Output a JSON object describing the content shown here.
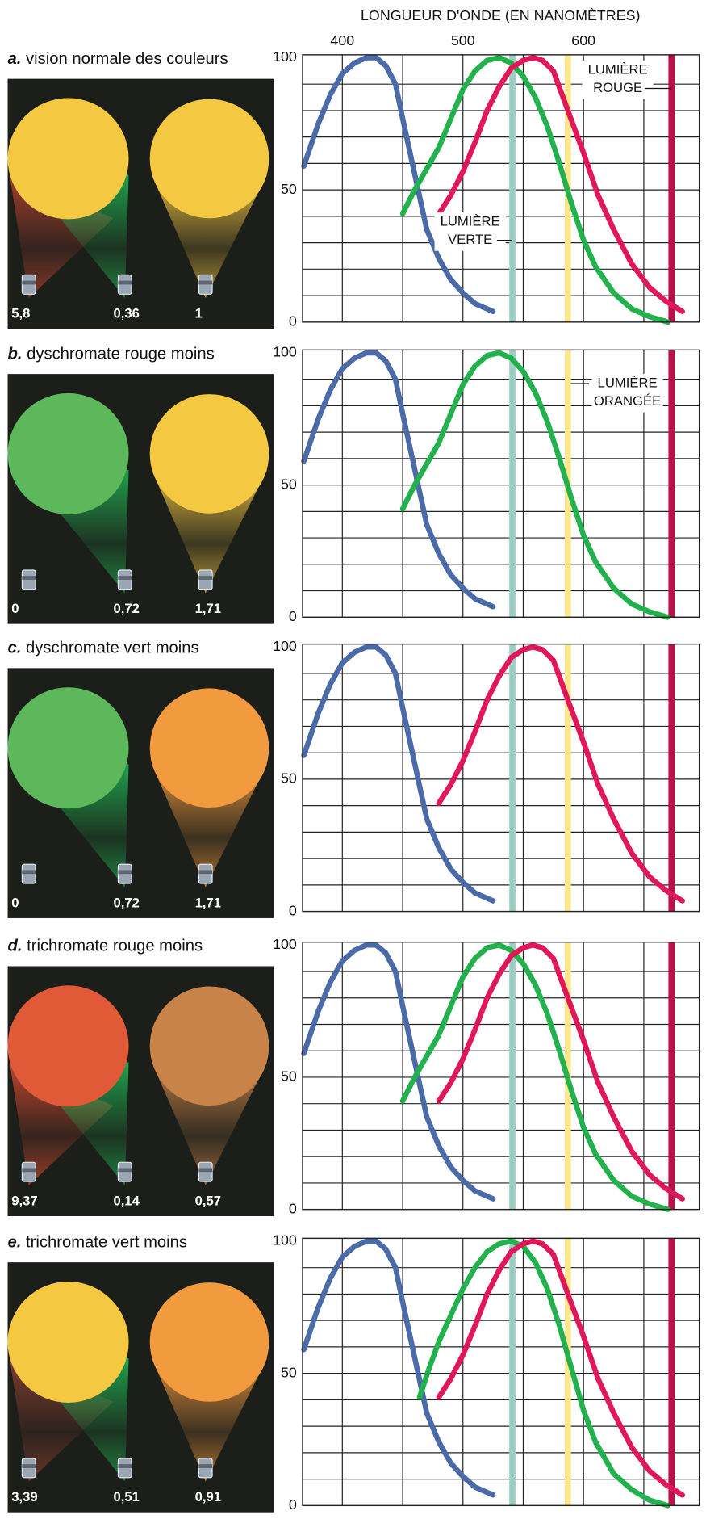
{
  "chart_data": [
    {
      "type": "line",
      "panel": "a.",
      "title": "vision normale des couleurs",
      "xlabel": "LONGUEUR D'ONDE (EN NANOMÈTRES)",
      "xticks": [
        400,
        500,
        600
      ],
      "xlim": [
        367,
        696
      ],
      "ylim": [
        0,
        100
      ],
      "yticks": [
        0,
        50,
        100
      ],
      "xgrid": [
        400,
        450,
        500,
        550,
        600,
        650
      ],
      "ygrid": [
        10,
        20,
        30,
        40,
        50,
        60,
        70,
        80,
        90
      ],
      "series": [
        {
          "color": "#4a6aa8",
          "x": [
            368,
            380,
            390,
            400,
            410,
            420,
            428,
            436,
            444,
            450,
            460,
            470,
            480,
            490,
            500,
            510,
            525
          ],
          "values": [
            59,
            75,
            86,
            94,
            98,
            100,
            100,
            97,
            90,
            77,
            56,
            35,
            24,
            16,
            11,
            7,
            4
          ]
        },
        {
          "color": "#22b14c",
          "x": [
            450,
            460,
            470,
            480,
            490,
            500,
            510,
            520,
            530,
            540,
            550,
            560,
            570,
            580,
            590,
            600,
            610,
            625,
            640,
            655,
            670
          ],
          "values": [
            41,
            50,
            58,
            66,
            77,
            88,
            95,
            99,
            100,
            98,
            93,
            85,
            74,
            60,
            45,
            31,
            21,
            11,
            5,
            2,
            0
          ]
        },
        {
          "color": "#e0185a",
          "x": [
            480,
            490,
            500,
            510,
            520,
            530,
            540,
            550,
            558,
            566,
            575,
            587,
            600,
            612,
            625,
            640,
            655,
            668,
            682
          ],
          "values": [
            41,
            48,
            57,
            68,
            80,
            89,
            96,
            99,
            100,
            99,
            95,
            80,
            64,
            48,
            35,
            22,
            13,
            8,
            4
          ]
        }
      ],
      "lights": [
        {
          "wavelength": 541,
          "color": "#9ccfc4",
          "label": [
            "LUMIÈRE",
            "VERTE"
          ]
        },
        {
          "wavelength": 587,
          "color": "#fce68e"
        },
        {
          "wavelength": 673,
          "color": "#b8124a",
          "label": [
            "LUMIÈRE",
            "ROUGE"
          ]
        }
      ],
      "mix_color": "#f5c842",
      "target_color": "#f5c842",
      "lamps": {
        "values": [
          5.8,
          0.36,
          1
        ],
        "value_labels": [
          "5,8",
          "0,36",
          "1"
        ],
        "colors": [
          "#b5432f",
          "#1fae50",
          "#f5c842"
        ]
      }
    },
    {
      "type": "line",
      "panel": "b.",
      "title": "dyschromate rouge moins",
      "xlim": [
        367,
        696
      ],
      "ylim": [
        0,
        100
      ],
      "yticks": [
        0,
        50,
        100
      ],
      "xgrid": [
        400,
        450,
        500,
        550,
        600,
        650
      ],
      "ygrid": [
        10,
        20,
        30,
        40,
        50,
        60,
        70,
        80,
        90
      ],
      "series": [
        {
          "color": "#4a6aa8",
          "x": [
            368,
            380,
            390,
            400,
            410,
            420,
            428,
            436,
            444,
            450,
            460,
            470,
            480,
            490,
            500,
            510,
            525
          ],
          "values": [
            59,
            75,
            86,
            94,
            98,
            100,
            100,
            97,
            90,
            77,
            56,
            35,
            24,
            16,
            11,
            7,
            4
          ]
        },
        {
          "color": "#22b14c",
          "x": [
            450,
            460,
            470,
            480,
            490,
            500,
            510,
            520,
            530,
            540,
            550,
            560,
            570,
            580,
            590,
            600,
            610,
            625,
            640,
            655,
            670
          ],
          "values": [
            41,
            50,
            58,
            66,
            77,
            88,
            95,
            99,
            100,
            98,
            93,
            85,
            74,
            60,
            45,
            31,
            21,
            11,
            5,
            2,
            0
          ]
        }
      ],
      "lights": [
        {
          "wavelength": 541,
          "color": "#9ccfc4"
        },
        {
          "wavelength": 587,
          "color": "#fce68e",
          "label": [
            "LUMIÈRE",
            "ORANGÉE"
          ]
        },
        {
          "wavelength": 673,
          "color": "#b8124a"
        }
      ],
      "mix_color": "#5cb85a",
      "target_color": "#f5c842",
      "lamps": {
        "values": [
          0,
          0.72,
          1.71
        ],
        "value_labels": [
          "0",
          "0,72",
          "1,71"
        ],
        "colors": [
          "#b5432f",
          "#1fae50",
          "#f5c842"
        ]
      }
    },
    {
      "type": "line",
      "panel": "c.",
      "title": "dyschromate vert moins",
      "xlim": [
        367,
        696
      ],
      "ylim": [
        0,
        100
      ],
      "yticks": [
        0,
        50,
        100
      ],
      "xgrid": [
        400,
        450,
        500,
        550,
        600,
        650
      ],
      "ygrid": [
        10,
        20,
        30,
        40,
        50,
        60,
        70,
        80,
        90
      ],
      "series": [
        {
          "color": "#4a6aa8",
          "x": [
            368,
            380,
            390,
            400,
            410,
            420,
            428,
            436,
            444,
            450,
            460,
            470,
            480,
            490,
            500,
            510,
            525
          ],
          "values": [
            59,
            75,
            86,
            94,
            98,
            100,
            100,
            97,
            90,
            77,
            56,
            35,
            24,
            16,
            11,
            7,
            4
          ]
        },
        {
          "color": "#e0185a",
          "x": [
            480,
            490,
            500,
            510,
            520,
            530,
            540,
            550,
            558,
            566,
            575,
            587,
            600,
            612,
            625,
            640,
            655,
            668,
            682
          ],
          "values": [
            41,
            48,
            57,
            68,
            80,
            89,
            96,
            99,
            100,
            99,
            95,
            80,
            64,
            48,
            35,
            22,
            13,
            8,
            4
          ]
        }
      ],
      "lights": [
        {
          "wavelength": 541,
          "color": "#9ccfc4"
        },
        {
          "wavelength": 587,
          "color": "#fce68e"
        },
        {
          "wavelength": 673,
          "color": "#b8124a"
        }
      ],
      "mix_color": "#5cb85a",
      "target_color": "#f29a3e",
      "lamps": {
        "values": [
          0,
          0.72,
          1.71
        ],
        "value_labels": [
          "0",
          "0,72",
          "1,71"
        ],
        "colors": [
          "#b5432f",
          "#1fae50",
          "#f29a3e"
        ]
      }
    },
    {
      "type": "line",
      "panel": "d.",
      "title": "trichromate rouge moins",
      "xlim": [
        367,
        696
      ],
      "ylim": [
        0,
        100
      ],
      "yticks": [
        0,
        50,
        100
      ],
      "xgrid": [
        400,
        450,
        500,
        550,
        600,
        650
      ],
      "ygrid": [
        10,
        20,
        30,
        40,
        50,
        60,
        70,
        80,
        90
      ],
      "series": [
        {
          "color": "#4a6aa8",
          "x": [
            368,
            380,
            390,
            400,
            410,
            420,
            428,
            436,
            444,
            450,
            460,
            470,
            480,
            490,
            500,
            510,
            525
          ],
          "values": [
            59,
            75,
            86,
            94,
            98,
            100,
            100,
            97,
            90,
            77,
            56,
            35,
            24,
            16,
            11,
            7,
            4
          ]
        },
        {
          "color": "#22b14c",
          "x": [
            450,
            460,
            470,
            480,
            490,
            500,
            510,
            520,
            530,
            540,
            550,
            560,
            570,
            580,
            590,
            600,
            610,
            625,
            640,
            655,
            670
          ],
          "values": [
            41,
            50,
            58,
            66,
            77,
            88,
            95,
            99,
            100,
            98,
            93,
            85,
            74,
            60,
            45,
            31,
            21,
            11,
            5,
            2,
            0
          ]
        },
        {
          "color": "#e0185a",
          "x": [
            480,
            490,
            500,
            510,
            520,
            530,
            540,
            550,
            558,
            566,
            575,
            587,
            600,
            612,
            625,
            640,
            655,
            668,
            682
          ],
          "values": [
            41,
            48,
            57,
            68,
            80,
            89,
            96,
            99,
            100,
            99,
            95,
            80,
            64,
            48,
            35,
            22,
            13,
            8,
            4
          ]
        }
      ],
      "lights": [
        {
          "wavelength": 541,
          "color": "#9ccfc4"
        },
        {
          "wavelength": 587,
          "color": "#fce68e"
        },
        {
          "wavelength": 673,
          "color": "#b8124a"
        }
      ],
      "mix_color": "#e05a38",
      "target_color": "#c88448",
      "lamps": {
        "values": [
          9.37,
          0.14,
          0.57
        ],
        "value_labels": [
          "9,37",
          "0,14",
          "0,57"
        ],
        "colors": [
          "#d04a30",
          "#1fae50",
          "#c88448"
        ]
      }
    },
    {
      "type": "line",
      "panel": "e.",
      "title": "trichromate vert moins",
      "xlim": [
        367,
        696
      ],
      "ylim": [
        0,
        100
      ],
      "yticks": [
        0,
        50,
        100
      ],
      "xgrid": [
        400,
        450,
        500,
        550,
        600,
        650
      ],
      "ygrid": [
        10,
        20,
        30,
        40,
        50,
        60,
        70,
        80,
        90
      ],
      "series": [
        {
          "color": "#4a6aa8",
          "x": [
            368,
            380,
            390,
            400,
            410,
            420,
            428,
            436,
            444,
            450,
            460,
            470,
            480,
            490,
            500,
            510,
            525
          ],
          "values": [
            59,
            75,
            86,
            94,
            98,
            100,
            100,
            97,
            90,
            77,
            56,
            35,
            24,
            16,
            11,
            7,
            4
          ]
        },
        {
          "color": "#22b14c",
          "x": [
            464,
            472,
            480,
            490,
            500,
            510,
            520,
            530,
            540,
            550,
            560,
            570,
            580,
            590,
            600,
            610,
            625,
            640,
            655,
            670
          ],
          "values": [
            41,
            52,
            62,
            72,
            82,
            90,
            96,
            99,
            100,
            98,
            92,
            82,
            68,
            52,
            36,
            24,
            12,
            6,
            2,
            0
          ]
        },
        {
          "color": "#e0185a",
          "x": [
            480,
            490,
            500,
            510,
            520,
            530,
            540,
            550,
            558,
            566,
            575,
            587,
            600,
            612,
            625,
            640,
            655,
            668,
            682
          ],
          "values": [
            41,
            48,
            57,
            68,
            80,
            89,
            96,
            99,
            100,
            99,
            95,
            80,
            64,
            48,
            35,
            22,
            13,
            8,
            4
          ]
        }
      ],
      "lights": [
        {
          "wavelength": 541,
          "color": "#9ccfc4"
        },
        {
          "wavelength": 587,
          "color": "#fce68e"
        },
        {
          "wavelength": 673,
          "color": "#b8124a"
        }
      ],
      "mix_color": "#f5c842",
      "target_color": "#f29a3e",
      "lamps": {
        "values": [
          3.39,
          0.51,
          0.91
        ],
        "value_labels": [
          "3,39",
          "0,51",
          "0,91"
        ],
        "colors": [
          "#8a4030",
          "#1fae50",
          "#f29a3e"
        ]
      }
    }
  ]
}
